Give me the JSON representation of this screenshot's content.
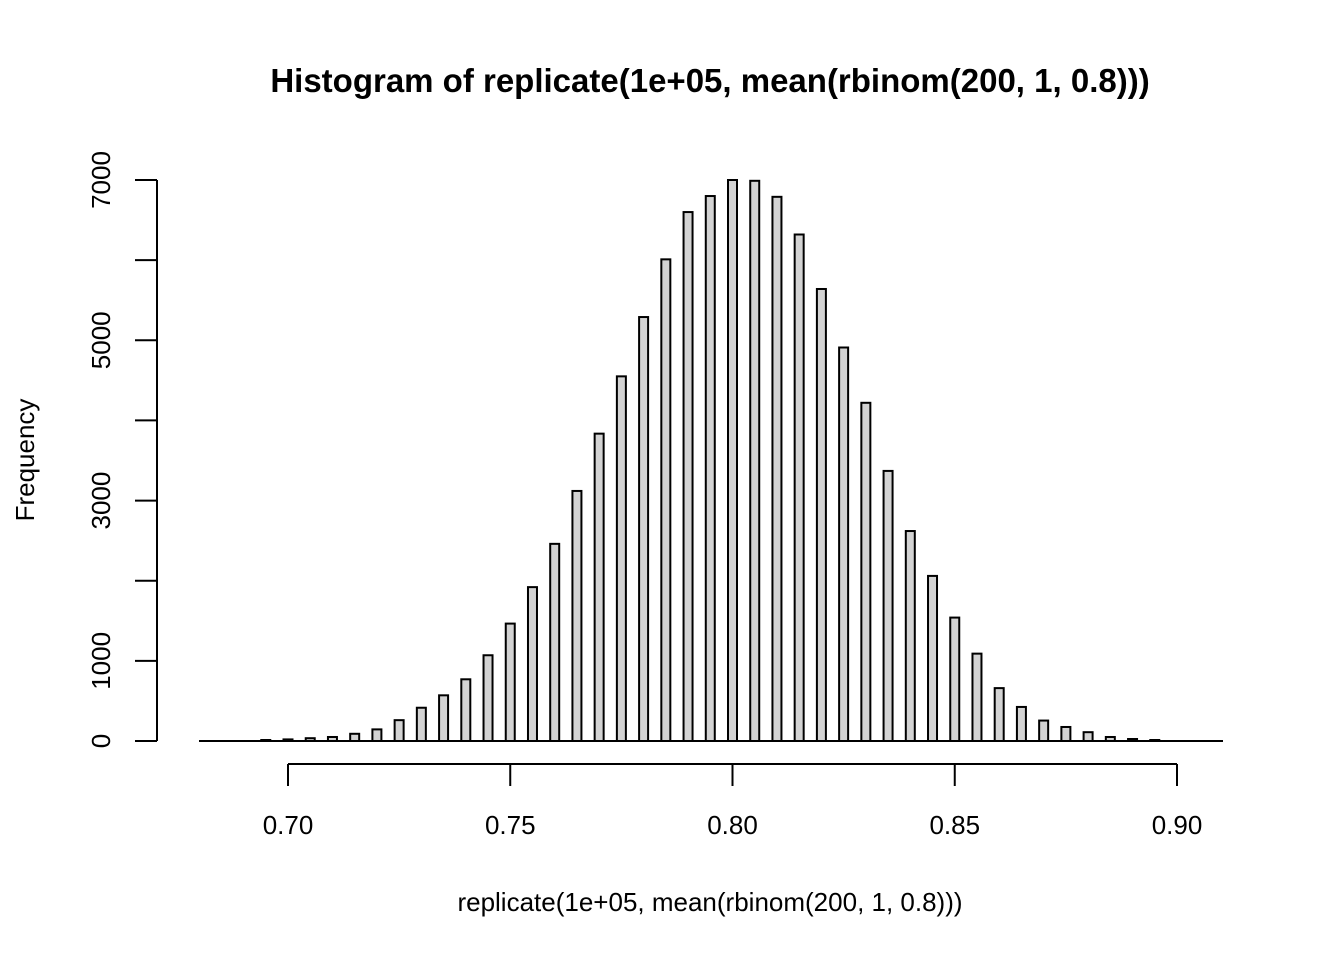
{
  "chart_data": {
    "type": "bar",
    "title": "Histogram of replicate(1e+05, mean(rbinom(200, 1, 0.8)))",
    "xlabel": "replicate(1e+05, mean(rbinom(200, 1, 0.8)))",
    "ylabel": "Frequency",
    "xlim": [
      0.68,
      0.91
    ],
    "ylim": [
      0,
      7000
    ],
    "x_ticks": [
      0.7,
      0.75,
      0.8,
      0.85,
      0.9
    ],
    "x_tick_labels": [
      "0.70",
      "0.75",
      "0.80",
      "0.85",
      "0.90"
    ],
    "y_ticks": [
      0,
      1000,
      3000,
      5000,
      7000
    ],
    "y_tick_labels": [
      "0",
      "1000",
      "3000",
      "5000",
      "7000"
    ],
    "y_minor_ticks": [
      2000,
      4000,
      6000
    ],
    "bar_fill": "#d3d3d3",
    "bar_stroke": "#000000",
    "x": [
      0.695,
      0.7,
      0.705,
      0.71,
      0.715,
      0.72,
      0.725,
      0.73,
      0.735,
      0.74,
      0.745,
      0.75,
      0.755,
      0.76,
      0.765,
      0.77,
      0.775,
      0.78,
      0.785,
      0.79,
      0.795,
      0.8,
      0.805,
      0.81,
      0.815,
      0.82,
      0.825,
      0.83,
      0.835,
      0.84,
      0.845,
      0.85,
      0.855,
      0.86,
      0.865,
      0.87,
      0.875,
      0.88,
      0.885,
      0.89,
      0.895
    ],
    "values": [
      8,
      20,
      35,
      50,
      90,
      145,
      260,
      415,
      570,
      770,
      1070,
      1465,
      1920,
      2460,
      3120,
      3835,
      4550,
      5290,
      6010,
      6600,
      6800,
      7000,
      6990,
      6790,
      6320,
      5640,
      4910,
      4220,
      3370,
      2620,
      2060,
      1540,
      1090,
      660,
      425,
      255,
      175,
      110,
      50,
      25,
      7
    ]
  }
}
